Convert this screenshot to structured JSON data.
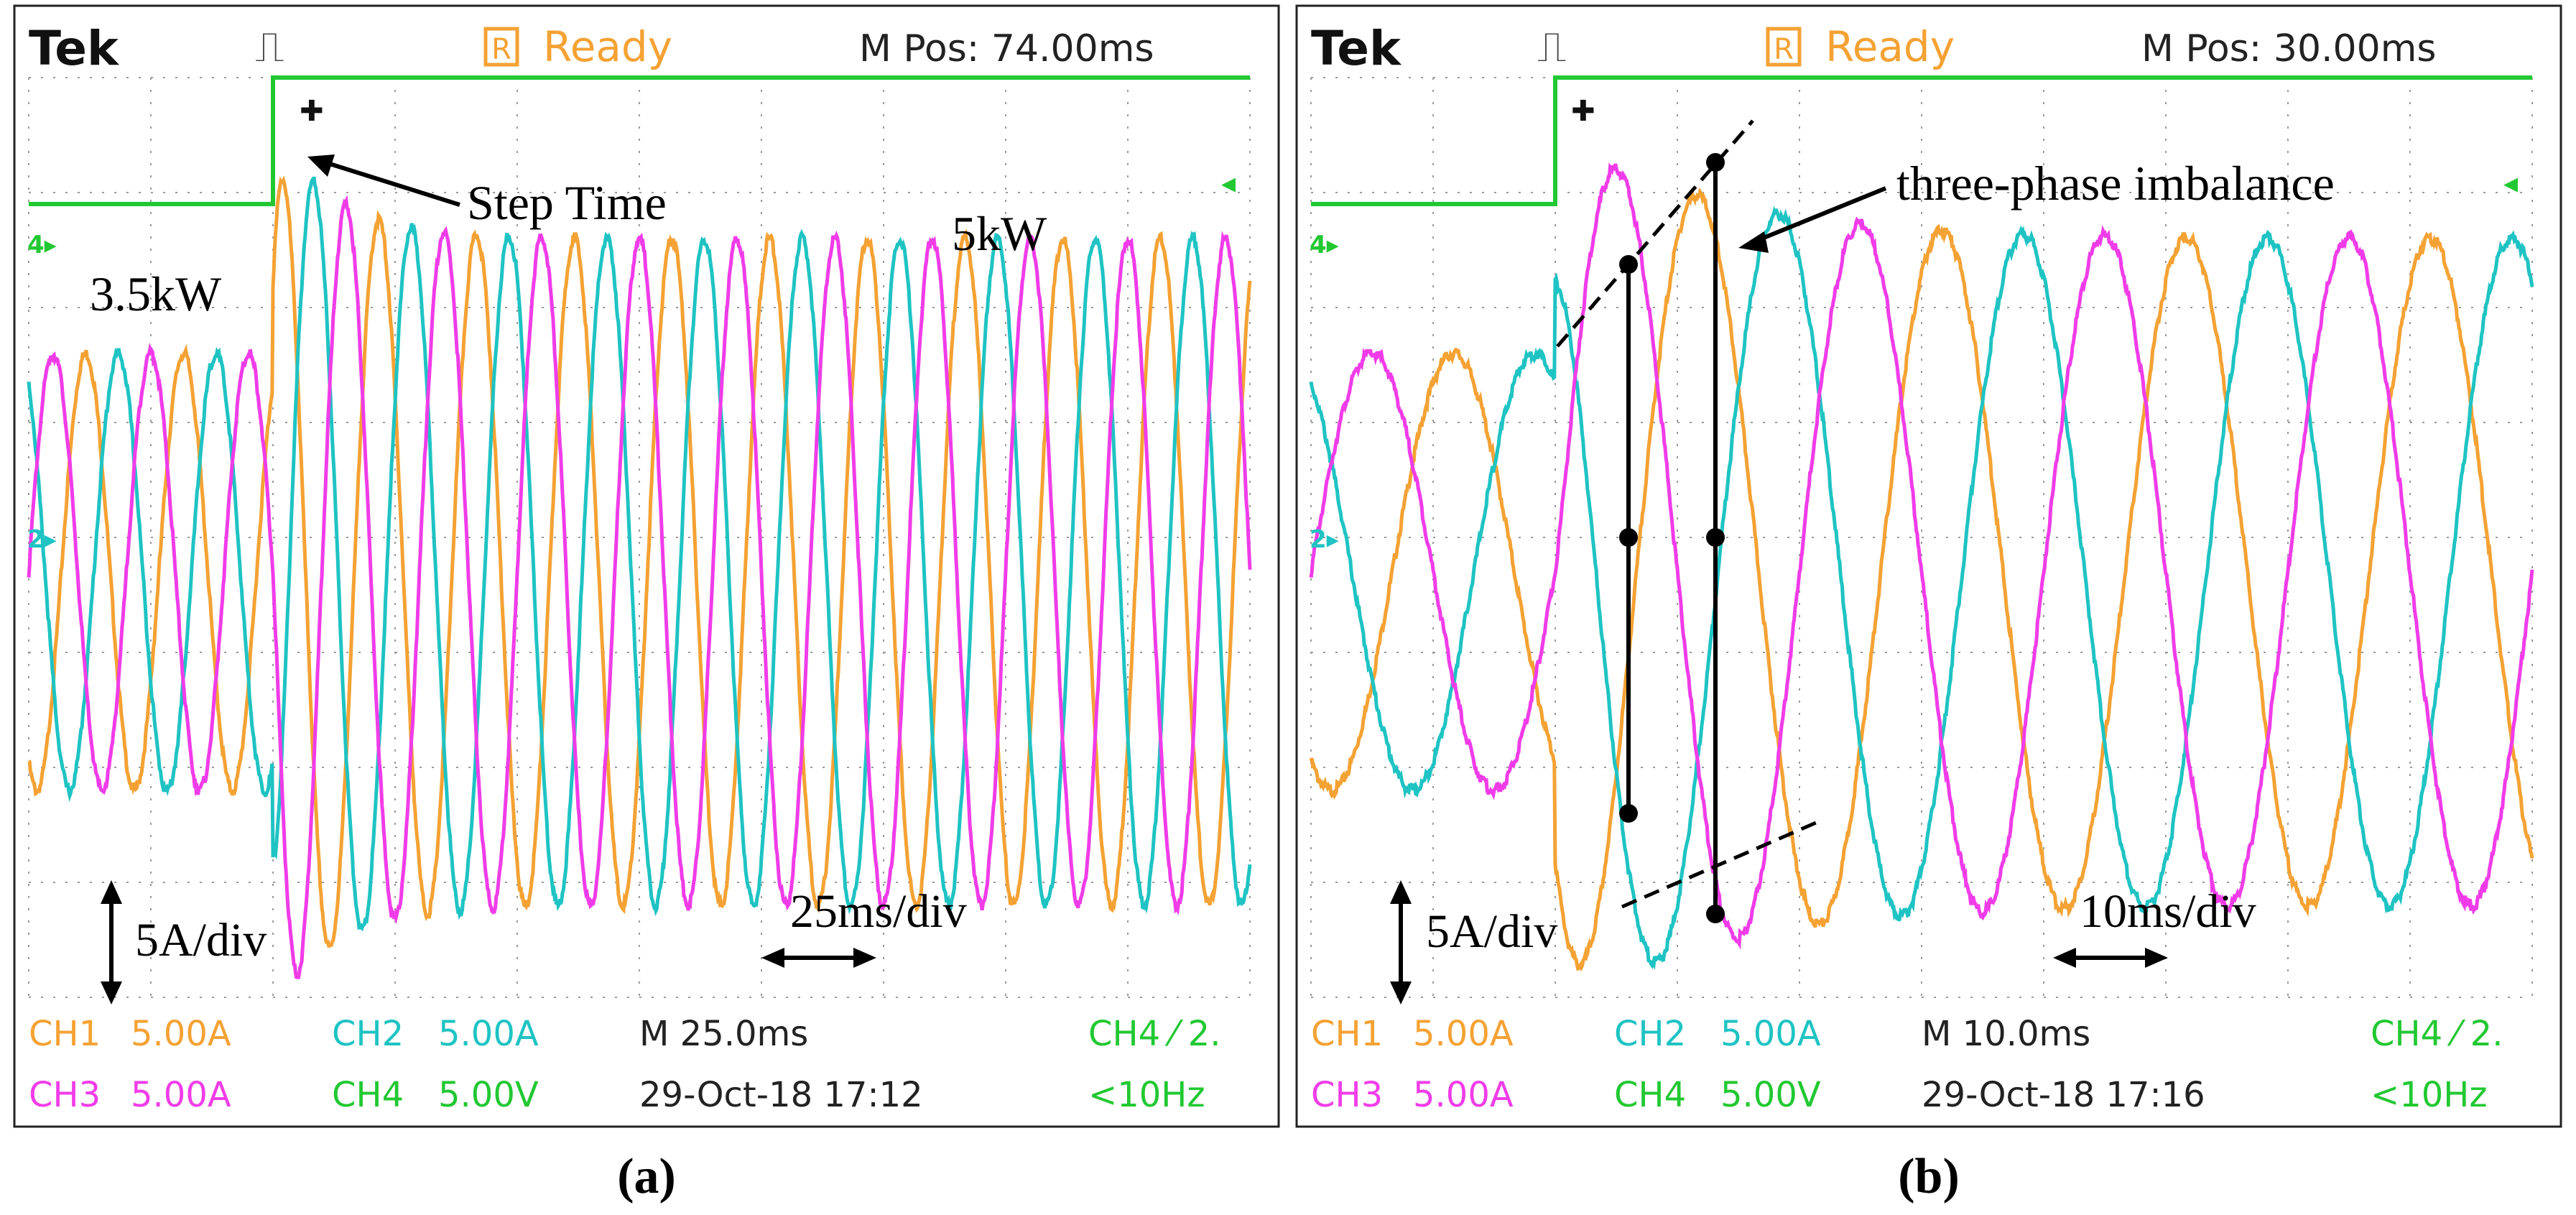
{
  "colors": {
    "ch1": "#f4a234",
    "ch2": "#1fc3c3",
    "ch3": "#f03ce8",
    "ch4": "#22c832",
    "grid": "#9a9a9a",
    "text": "#000000"
  },
  "chart_data": [
    {
      "type": "line",
      "panel_label": "(a)",
      "header": {
        "brand": "Tek",
        "trigger_symbol": "⎍",
        "status_box": "R",
        "status": "Ready",
        "mpos": "M Pos: 74.00ms"
      },
      "footer": {
        "ch1_name": "CH1",
        "ch1_scale": "5.00A",
        "ch2_name": "CH2",
        "ch2_scale": "5.00A",
        "time_base": "M 25.0ms",
        "ch4_trigger": "CH4 ⁄ 2.",
        "ch3_name": "CH3",
        "ch3_scale": "5.00A",
        "ch4_name": "CH4",
        "ch4_scale": "5.00V",
        "datetime": "29-Oct-18 17:12",
        "freq": "<10Hz"
      },
      "annotations": {
        "step_time": "Step Time",
        "power_before": "3.5kW",
        "power_after": "5kW",
        "vscale": "5A/div",
        "hscale": "25ms/div"
      },
      "x_range_ms": [
        0,
        250
      ],
      "y_range_div": [
        -4,
        4
      ],
      "step_time_ms": 50,
      "ch4_levels_div": [
        2.9,
        4.0
      ],
      "series": [
        {
          "name": "CH1",
          "freq_hz": 50,
          "phase_deg": -120,
          "amp_before_div": 1.9,
          "amp_after_div": 2.9,
          "overshoot_div": 3.9,
          "offset_div": -0.3
        },
        {
          "name": "CH2",
          "freq_hz": 50,
          "phase_deg": 120,
          "amp_before_div": 1.9,
          "amp_after_div": 2.9,
          "overshoot_div": 3.9,
          "offset_div": -0.3
        },
        {
          "name": "CH3",
          "freq_hz": 50,
          "phase_deg": 0,
          "amp_before_div": 1.9,
          "amp_after_div": 2.9,
          "overshoot_div": 3.9,
          "offset_div": -0.3
        }
      ]
    },
    {
      "type": "line",
      "panel_label": "(b)",
      "header": {
        "brand": "Tek",
        "trigger_symbol": "⎍",
        "status_box": "R",
        "status": "Ready",
        "mpos": "M Pos: 30.00ms"
      },
      "footer": {
        "ch1_name": "CH1",
        "ch1_scale": "5.00A",
        "ch2_name": "CH2",
        "ch2_scale": "5.00A",
        "time_base": "M 10.0ms",
        "ch4_trigger": "CH4 ⁄ 2.",
        "ch3_name": "CH3",
        "ch3_scale": "5.00A",
        "ch4_name": "CH4",
        "ch4_scale": "5.00V",
        "datetime": "29-Oct-18 17:16",
        "freq": "<10Hz"
      },
      "annotations": {
        "imbalance": "three-phase imbalance",
        "vscale": "5A/div",
        "hscale": "10ms/div"
      },
      "x_range_ms": [
        0,
        100
      ],
      "y_range_div": [
        -4,
        4
      ],
      "step_time_ms": 20,
      "ch4_levels_div": [
        2.9,
        4.0
      ],
      "series": [
        {
          "name": "CH1",
          "freq_hz": 50,
          "phase_deg": -120,
          "amp_before_div": 1.9,
          "amp_after_div": 2.9,
          "overshoot_div": 3.9,
          "offset_div": -0.3
        },
        {
          "name": "CH2",
          "freq_hz": 50,
          "phase_deg": 120,
          "amp_before_div": 1.9,
          "amp_after_div": 2.9,
          "overshoot_div": 3.9,
          "offset_div": -0.3
        },
        {
          "name": "CH3",
          "freq_hz": 50,
          "phase_deg": 0,
          "amp_before_div": 1.9,
          "amp_after_div": 2.9,
          "overshoot_div": 3.9,
          "offset_div": -0.3
        }
      ]
    }
  ]
}
